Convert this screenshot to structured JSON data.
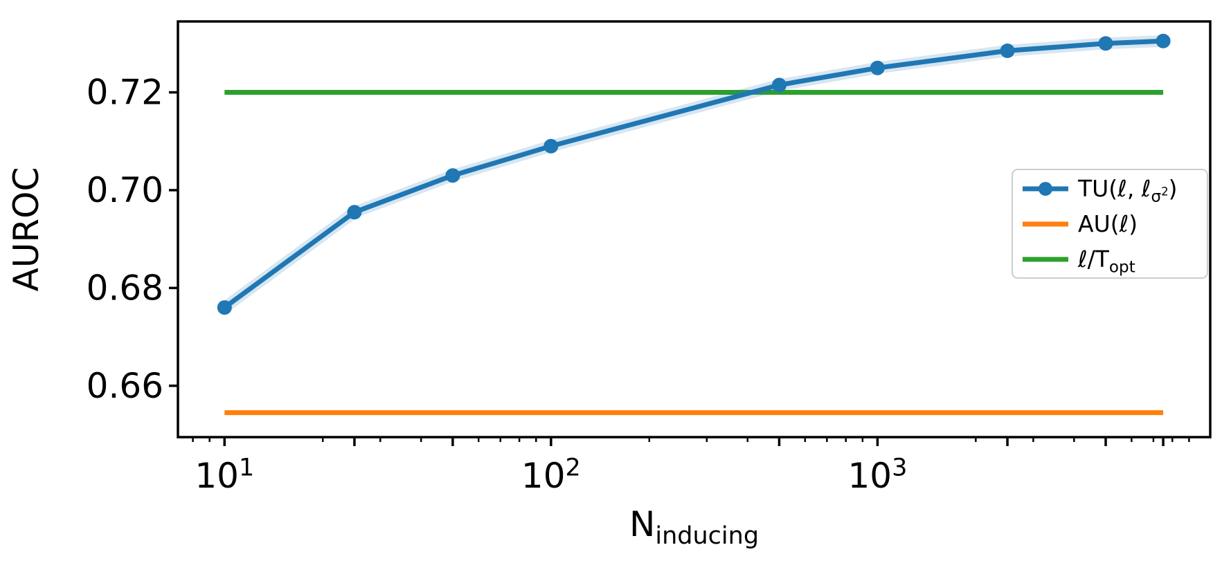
{
  "figure": {
    "background": "#ffffff"
  },
  "chart_data": {
    "type": "line",
    "title": "",
    "xlabel": "N_inducing",
    "xlabel_runs": [
      {
        "t": "N",
        "s": "n"
      },
      {
        "t": "inducing",
        "s": "sub"
      }
    ],
    "ylabel": "AUROC",
    "x_scale": "log",
    "grid": false,
    "xlim": [
      7.2,
      10450
    ],
    "ylim": [
      0.6495,
      0.7345
    ],
    "x_major_ticks": [
      {
        "value": 10,
        "base": "10",
        "exp": "1"
      },
      {
        "value": 100,
        "base": "10",
        "exp": "2"
      },
      {
        "value": 1000,
        "base": "10",
        "exp": "3"
      }
    ],
    "x_long_unlabeled_ticks": [
      25,
      50,
      500,
      2500,
      5000,
      7500
    ],
    "x_minor_ticks": [
      8,
      9,
      20,
      30,
      40,
      60,
      70,
      80,
      90,
      200,
      300,
      400,
      600,
      700,
      800,
      900,
      2000,
      3000,
      4000,
      6000,
      7000,
      8000,
      9000
    ],
    "y_ticks": [
      {
        "value": 0.66,
        "label": "0.66"
      },
      {
        "value": 0.68,
        "label": "0.68"
      },
      {
        "value": 0.7,
        "label": "0.70"
      },
      {
        "value": 0.72,
        "label": "0.72"
      }
    ],
    "series": [
      {
        "name": "TU(ℓ, ℓ_σ²)",
        "legend_runs": [
          {
            "t": "TU(ℓ, ℓ",
            "s": "n"
          },
          {
            "t": "σ",
            "s": "sub"
          },
          {
            "t": "2",
            "s": "subsup"
          },
          {
            "t": ")",
            "s": "n"
          }
        ],
        "kind": "line",
        "color": "#1f77b4",
        "marker": "circle",
        "band_color": "rgba(31,119,180,0.18)",
        "x": [
          10,
          25,
          50,
          100,
          500,
          1000,
          2500,
          5000,
          7500
        ],
        "y": [
          0.676,
          0.6955,
          0.703,
          0.709,
          0.7215,
          0.725,
          0.7285,
          0.73,
          0.7305
        ]
      },
      {
        "name": "AU(ℓ)",
        "legend_runs": [
          {
            "t": "AU(ℓ)",
            "s": "n"
          }
        ],
        "kind": "hline",
        "color": "#ff7f0e",
        "y_const": 0.6545,
        "x_span": [
          10,
          7500
        ]
      },
      {
        "name": "ℓ/T_opt",
        "legend_runs": [
          {
            "t": "ℓ/T",
            "s": "n"
          },
          {
            "t": "opt",
            "s": "sub"
          }
        ],
        "kind": "hline",
        "color": "#2ca02c",
        "y_const": 0.72,
        "x_span": [
          10,
          7500
        ]
      }
    ],
    "legend": {
      "position": "center right"
    }
  }
}
